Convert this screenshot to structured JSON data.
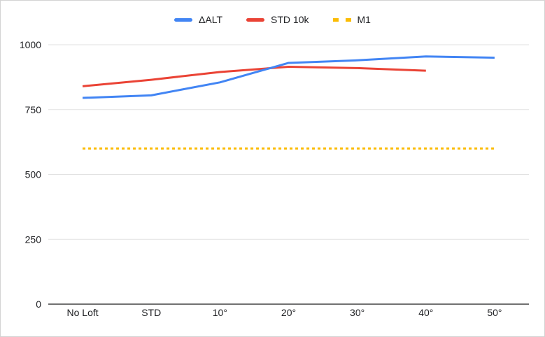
{
  "chart_data": {
    "type": "line",
    "title": "",
    "xlabel": "",
    "ylabel": "",
    "categories": [
      "No Loft",
      "STD",
      "10°",
      "20°",
      "30°",
      "40°",
      "50°"
    ],
    "series": [
      {
        "name": "ΔALT",
        "color": "#4285F4",
        "style": "solid",
        "values": [
          795,
          805,
          855,
          930,
          940,
          955,
          950
        ]
      },
      {
        "name": "STD 10k",
        "color": "#EA4335",
        "style": "solid",
        "values": [
          840,
          865,
          895,
          915,
          910,
          900,
          null
        ]
      },
      {
        "name": "M1",
        "color": "#FBBC04",
        "style": "dotted",
        "values": [
          600,
          600,
          600,
          600,
          600,
          600,
          600
        ]
      }
    ],
    "ylim": [
      0,
      1000
    ],
    "yticks": [
      0,
      250,
      500,
      750,
      1000
    ],
    "grid": true,
    "legend_position": "top",
    "colors": {
      "gridline": "#e2e2e2",
      "axis_line": "#717171",
      "tick_label": "#202124",
      "legend_text": "#202124",
      "background": "#ffffff"
    }
  }
}
